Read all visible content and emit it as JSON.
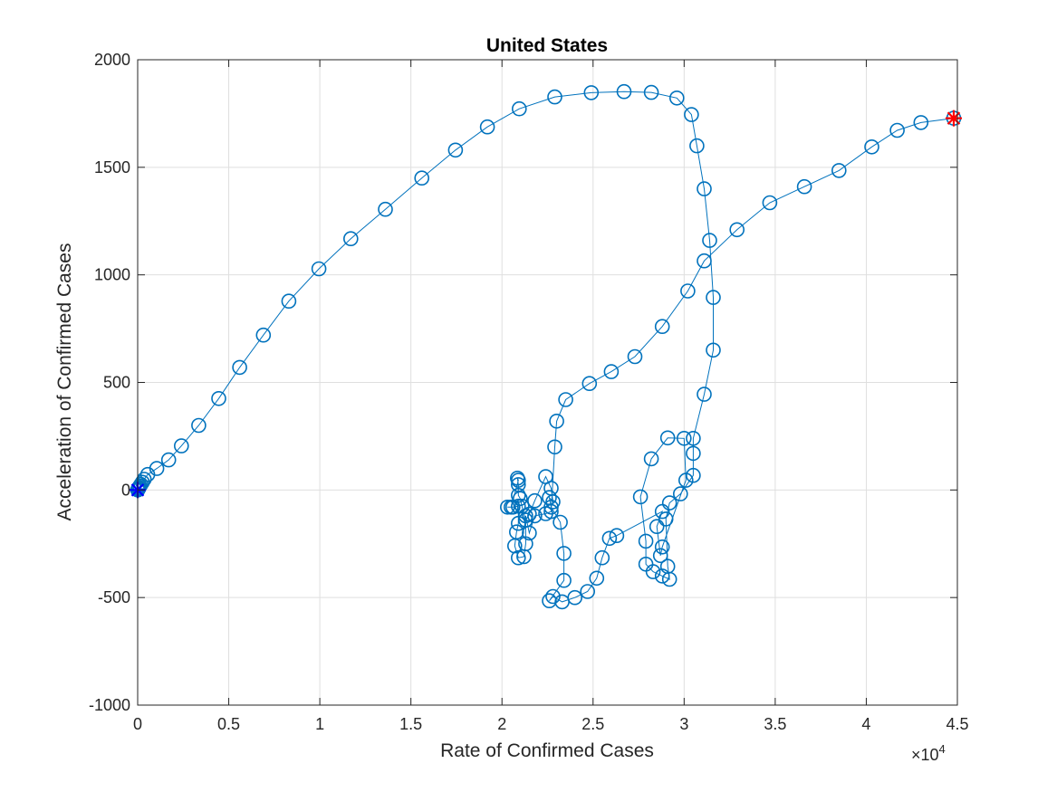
{
  "chart_data": {
    "type": "scatter",
    "title": "United States",
    "xlabel": "Rate of Confirmed Cases",
    "ylabel": "Acceleration of Confirmed Cases",
    "x_exponent_base": "×10",
    "x_exponent_power": "4",
    "xlim": [
      0,
      4.5
    ],
    "ylim": [
      -1000,
      2000
    ],
    "x_ticks": [
      "0",
      "0.5",
      "1",
      "1.5",
      "2",
      "2.5",
      "3",
      "3.5",
      "4",
      "4.5"
    ],
    "y_ticks": [
      "-1000",
      "-500",
      "0",
      "500",
      "1000",
      "1500",
      "2000"
    ],
    "grid": true,
    "colors": {
      "series": "#0072BD",
      "start_marker": "#0000FF",
      "end_marker": "#FF0000",
      "axis": "#262626",
      "grid": "#DFDFDF"
    },
    "series": [
      {
        "marker": "circle-line",
        "points": [
          [
            0.0,
            0
          ],
          [
            0.001,
            1
          ],
          [
            0.002,
            2
          ],
          [
            0.003,
            4
          ],
          [
            0.005,
            7
          ],
          [
            0.008,
            12
          ],
          [
            0.012,
            18
          ],
          [
            0.018,
            26
          ],
          [
            0.026,
            36
          ],
          [
            0.036,
            50
          ],
          [
            0.055,
            72
          ],
          [
            0.105,
            100
          ],
          [
            0.17,
            140
          ],
          [
            0.24,
            205
          ],
          [
            0.335,
            300
          ],
          [
            0.445,
            425
          ],
          [
            0.56,
            570
          ],
          [
            0.69,
            720
          ],
          [
            0.83,
            878
          ],
          [
            0.995,
            1028
          ],
          [
            1.17,
            1168
          ],
          [
            1.36,
            1305
          ],
          [
            1.56,
            1450
          ],
          [
            1.745,
            1580
          ],
          [
            1.92,
            1688
          ],
          [
            2.095,
            1772
          ],
          [
            2.29,
            1827
          ],
          [
            2.49,
            1847
          ],
          [
            2.67,
            1852
          ],
          [
            2.82,
            1848
          ],
          [
            2.96,
            1822
          ],
          [
            3.04,
            1745
          ],
          [
            3.07,
            1600
          ],
          [
            3.11,
            1400
          ],
          [
            3.14,
            1160
          ],
          [
            3.16,
            895
          ],
          [
            3.16,
            650
          ],
          [
            3.11,
            445
          ],
          [
            3.05,
            240
          ],
          [
            3.05,
            170
          ],
          [
            3.05,
            68
          ],
          [
            2.98,
            -18
          ],
          [
            2.92,
            -60
          ],
          [
            2.9,
            -135
          ],
          [
            2.91,
            -355
          ],
          [
            2.92,
            -415
          ],
          [
            2.88,
            -400
          ],
          [
            2.83,
            -380
          ],
          [
            2.79,
            -345
          ],
          [
            2.79,
            -238
          ],
          [
            2.76,
            -32
          ],
          [
            2.82,
            145
          ],
          [
            2.91,
            242
          ],
          [
            3.0,
            240
          ],
          [
            3.01,
            45
          ],
          [
            2.88,
            -265
          ],
          [
            2.87,
            -305
          ],
          [
            2.85,
            -170
          ],
          [
            2.88,
            -100
          ],
          [
            2.63,
            -212
          ],
          [
            2.59,
            -225
          ],
          [
            2.55,
            -315
          ],
          [
            2.52,
            -410
          ],
          [
            2.47,
            -472
          ],
          [
            2.4,
            -500
          ],
          [
            2.33,
            -520
          ],
          [
            2.28,
            -495
          ],
          [
            2.26,
            -515
          ],
          [
            2.34,
            -420
          ],
          [
            2.34,
            -295
          ],
          [
            2.32,
            -150
          ],
          [
            2.27,
            -80
          ],
          [
            2.26,
            -35
          ],
          [
            2.28,
            -55
          ],
          [
            2.27,
            8
          ],
          [
            2.24,
            62
          ],
          [
            2.18,
            -50
          ],
          [
            2.15,
            -112
          ],
          [
            2.13,
            -140
          ],
          [
            2.11,
            -75
          ],
          [
            2.1,
            -40
          ],
          [
            2.09,
            -25
          ],
          [
            2.09,
            25
          ],
          [
            2.085,
            55
          ],
          [
            2.09,
            45
          ],
          [
            2.05,
            -80
          ],
          [
            2.03,
            -80
          ],
          [
            2.06,
            -80
          ],
          [
            2.09,
            -75
          ],
          [
            2.09,
            -155
          ],
          [
            2.08,
            -195
          ],
          [
            2.07,
            -260
          ],
          [
            2.09,
            -315
          ],
          [
            2.12,
            -310
          ],
          [
            2.13,
            -250
          ],
          [
            2.13,
            -120
          ],
          [
            2.15,
            -200
          ],
          [
            2.18,
            -120
          ],
          [
            2.24,
            -110
          ],
          [
            2.27,
            -100
          ],
          [
            2.29,
            200
          ],
          [
            2.3,
            320
          ],
          [
            2.35,
            420
          ],
          [
            2.48,
            495
          ],
          [
            2.6,
            550
          ],
          [
            2.73,
            620
          ],
          [
            2.88,
            760
          ],
          [
            3.02,
            925
          ],
          [
            3.11,
            1065
          ],
          [
            3.29,
            1210
          ],
          [
            3.47,
            1335
          ],
          [
            3.66,
            1410
          ],
          [
            3.85,
            1485
          ],
          [
            4.03,
            1595
          ],
          [
            4.17,
            1672
          ],
          [
            4.3,
            1708
          ],
          [
            4.48,
            1728
          ]
        ]
      }
    ],
    "start_point": [
      0,
      0
    ],
    "end_point": [
      4.48,
      1728
    ]
  }
}
